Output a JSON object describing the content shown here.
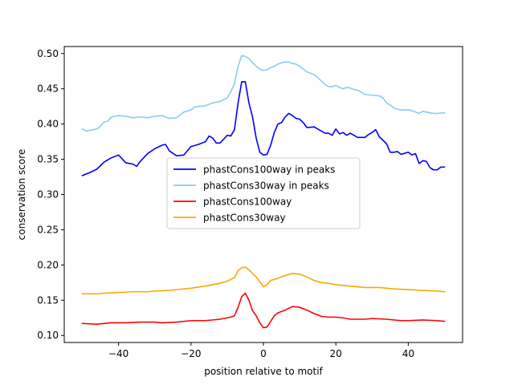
{
  "chart_data": {
    "type": "line",
    "title": "",
    "xlabel": "position relative to motif",
    "ylabel": "conservation score",
    "xlim": [
      -55,
      55
    ],
    "ylim": [
      0.09,
      0.51
    ],
    "xticks": [
      -40,
      -20,
      0,
      20,
      40
    ],
    "xtick_labels": [
      "−40",
      "−20",
      "0",
      "20",
      "40"
    ],
    "yticks": [
      0.1,
      0.15,
      0.2,
      0.25,
      0.3,
      0.35,
      0.4,
      0.45,
      0.5
    ],
    "ytick_labels": [
      "0.10",
      "0.15",
      "0.20",
      "0.25",
      "0.30",
      "0.35",
      "0.40",
      "0.45",
      "0.50"
    ],
    "grid": false,
    "legend_position": "center",
    "series": [
      {
        "name": "phastCons100way in peaks",
        "color": "#0000ff",
        "points": [
          [
            -50,
            0.327
          ],
          [
            -48,
            0.331
          ],
          [
            -46,
            0.336
          ],
          [
            -44,
            0.346
          ],
          [
            -42,
            0.352
          ],
          [
            -40,
            0.356
          ],
          [
            -38,
            0.345
          ],
          [
            -36,
            0.343
          ],
          [
            -35,
            0.34
          ],
          [
            -34,
            0.347
          ],
          [
            -32,
            0.358
          ],
          [
            -30,
            0.365
          ],
          [
            -28,
            0.37
          ],
          [
            -27,
            0.371
          ],
          [
            -26,
            0.362
          ],
          [
            -24,
            0.355
          ],
          [
            -22,
            0.356
          ],
          [
            -20,
            0.368
          ],
          [
            -18,
            0.371
          ],
          [
            -16,
            0.375
          ],
          [
            -15,
            0.383
          ],
          [
            -14,
            0.38
          ],
          [
            -13,
            0.373
          ],
          [
            -12,
            0.373
          ],
          [
            -10,
            0.384
          ],
          [
            -9,
            0.383
          ],
          [
            -8,
            0.392
          ],
          [
            -7,
            0.43
          ],
          [
            -6,
            0.46
          ],
          [
            -5,
            0.46
          ],
          [
            -4,
            0.43
          ],
          [
            -3,
            0.41
          ],
          [
            -2,
            0.38
          ],
          [
            -1,
            0.36
          ],
          [
            0,
            0.356
          ],
          [
            1,
            0.357
          ],
          [
            2,
            0.37
          ],
          [
            3,
            0.388
          ],
          [
            4,
            0.4
          ],
          [
            5,
            0.402
          ],
          [
            6,
            0.41
          ],
          [
            7,
            0.415
          ],
          [
            8,
            0.412
          ],
          [
            9,
            0.408
          ],
          [
            10,
            0.407
          ],
          [
            11,
            0.402
          ],
          [
            12,
            0.395
          ],
          [
            14,
            0.396
          ],
          [
            16,
            0.39
          ],
          [
            17,
            0.387
          ],
          [
            18,
            0.387
          ],
          [
            19,
            0.384
          ],
          [
            20,
            0.393
          ],
          [
            21,
            0.386
          ],
          [
            22,
            0.388
          ],
          [
            23,
            0.384
          ],
          [
            24,
            0.387
          ],
          [
            26,
            0.381
          ],
          [
            28,
            0.381
          ],
          [
            29,
            0.385
          ],
          [
            30,
            0.388
          ],
          [
            31,
            0.392
          ],
          [
            32,
            0.382
          ],
          [
            34,
            0.372
          ],
          [
            35,
            0.36
          ],
          [
            36,
            0.36
          ],
          [
            37,
            0.361
          ],
          [
            38,
            0.357
          ],
          [
            40,
            0.36
          ],
          [
            41,
            0.356
          ],
          [
            42,
            0.358
          ],
          [
            43,
            0.344
          ],
          [
            44,
            0.348
          ],
          [
            45,
            0.347
          ],
          [
            46,
            0.338
          ],
          [
            47,
            0.335
          ],
          [
            48,
            0.335
          ],
          [
            49,
            0.339
          ],
          [
            50,
            0.339
          ]
        ]
      },
      {
        "name": "phastCons30way in peaks",
        "color": "#87ceeb",
        "points": [
          [
            -50,
            0.393
          ],
          [
            -49,
            0.39
          ],
          [
            -48,
            0.391
          ],
          [
            -46,
            0.393
          ],
          [
            -45,
            0.397
          ],
          [
            -44,
            0.403
          ],
          [
            -43,
            0.404
          ],
          [
            -42,
            0.41
          ],
          [
            -40,
            0.412
          ],
          [
            -38,
            0.411
          ],
          [
            -36,
            0.409
          ],
          [
            -34,
            0.41
          ],
          [
            -32,
            0.409
          ],
          [
            -30,
            0.411
          ],
          [
            -28,
            0.412
          ],
          [
            -27,
            0.41
          ],
          [
            -26,
            0.408
          ],
          [
            -24,
            0.409
          ],
          [
            -23,
            0.413
          ],
          [
            -22,
            0.417
          ],
          [
            -20,
            0.42
          ],
          [
            -19,
            0.424
          ],
          [
            -18,
            0.425
          ],
          [
            -16,
            0.426
          ],
          [
            -14,
            0.43
          ],
          [
            -12,
            0.432
          ],
          [
            -10,
            0.437
          ],
          [
            -9,
            0.446
          ],
          [
            -8,
            0.457
          ],
          [
            -7,
            0.482
          ],
          [
            -6,
            0.497
          ],
          [
            -5,
            0.496
          ],
          [
            -4,
            0.493
          ],
          [
            -3,
            0.487
          ],
          [
            -2,
            0.482
          ],
          [
            -1,
            0.478
          ],
          [
            0,
            0.476
          ],
          [
            1,
            0.477
          ],
          [
            2,
            0.48
          ],
          [
            3,
            0.482
          ],
          [
            4,
            0.485
          ],
          [
            5,
            0.487
          ],
          [
            6,
            0.488
          ],
          [
            7,
            0.488
          ],
          [
            8,
            0.486
          ],
          [
            9,
            0.485
          ],
          [
            10,
            0.482
          ],
          [
            11,
            0.478
          ],
          [
            12,
            0.474
          ],
          [
            13,
            0.472
          ],
          [
            14,
            0.47
          ],
          [
            15,
            0.466
          ],
          [
            16,
            0.461
          ],
          [
            17,
            0.456
          ],
          [
            18,
            0.453
          ],
          [
            19,
            0.453
          ],
          [
            20,
            0.455
          ],
          [
            21,
            0.452
          ],
          [
            22,
            0.45
          ],
          [
            23,
            0.452
          ],
          [
            24,
            0.451
          ],
          [
            25,
            0.449
          ],
          [
            26,
            0.448
          ],
          [
            27,
            0.445
          ],
          [
            28,
            0.442
          ],
          [
            30,
            0.441
          ],
          [
            32,
            0.44
          ],
          [
            33,
            0.437
          ],
          [
            34,
            0.43
          ],
          [
            35,
            0.427
          ],
          [
            36,
            0.423
          ],
          [
            37,
            0.421
          ],
          [
            38,
            0.42
          ],
          [
            40,
            0.42
          ],
          [
            41,
            0.419
          ],
          [
            42,
            0.417
          ],
          [
            43,
            0.415
          ],
          [
            44,
            0.418
          ],
          [
            45,
            0.417
          ],
          [
            46,
            0.416
          ],
          [
            47,
            0.415
          ],
          [
            48,
            0.415
          ],
          [
            50,
            0.416
          ]
        ]
      },
      {
        "name": "phastCons100way",
        "color": "#ff0000",
        "points": [
          [
            -50,
            0.117
          ],
          [
            -46,
            0.116
          ],
          [
            -44,
            0.117
          ],
          [
            -42,
            0.118
          ],
          [
            -38,
            0.118
          ],
          [
            -34,
            0.119
          ],
          [
            -30,
            0.119
          ],
          [
            -28,
            0.118
          ],
          [
            -24,
            0.119
          ],
          [
            -20,
            0.121
          ],
          [
            -16,
            0.121
          ],
          [
            -12,
            0.123
          ],
          [
            -10,
            0.125
          ],
          [
            -9,
            0.126
          ],
          [
            -8,
            0.128
          ],
          [
            -7,
            0.14
          ],
          [
            -6,
            0.155
          ],
          [
            -5,
            0.16
          ],
          [
            -4,
            0.15
          ],
          [
            -3,
            0.135
          ],
          [
            -2,
            0.128
          ],
          [
            -1,
            0.118
          ],
          [
            0,
            0.111
          ],
          [
            1,
            0.112
          ],
          [
            2,
            0.12
          ],
          [
            3,
            0.128
          ],
          [
            4,
            0.132
          ],
          [
            6,
            0.136
          ],
          [
            8,
            0.141
          ],
          [
            10,
            0.14
          ],
          [
            12,
            0.136
          ],
          [
            14,
            0.131
          ],
          [
            16,
            0.127
          ],
          [
            18,
            0.126
          ],
          [
            20,
            0.126
          ],
          [
            22,
            0.125
          ],
          [
            24,
            0.123
          ],
          [
            26,
            0.123
          ],
          [
            28,
            0.123
          ],
          [
            30,
            0.124
          ],
          [
            34,
            0.123
          ],
          [
            38,
            0.121
          ],
          [
            40,
            0.121
          ],
          [
            44,
            0.122
          ],
          [
            48,
            0.121
          ],
          [
            50,
            0.12
          ]
        ]
      },
      {
        "name": "phastCons30way",
        "color": "#ffa500",
        "points": [
          [
            -50,
            0.159
          ],
          [
            -46,
            0.159
          ],
          [
            -44,
            0.16
          ],
          [
            -40,
            0.161
          ],
          [
            -36,
            0.162
          ],
          [
            -32,
            0.162
          ],
          [
            -30,
            0.163
          ],
          [
            -26,
            0.164
          ],
          [
            -24,
            0.165
          ],
          [
            -20,
            0.167
          ],
          [
            -16,
            0.17
          ],
          [
            -12,
            0.174
          ],
          [
            -10,
            0.177
          ],
          [
            -8,
            0.182
          ],
          [
            -7,
            0.192
          ],
          [
            -6,
            0.196
          ],
          [
            -5,
            0.197
          ],
          [
            -4,
            0.193
          ],
          [
            -3,
            0.188
          ],
          [
            -2,
            0.183
          ],
          [
            -1,
            0.176
          ],
          [
            0,
            0.169
          ],
          [
            1,
            0.172
          ],
          [
            2,
            0.178
          ],
          [
            4,
            0.181
          ],
          [
            6,
            0.185
          ],
          [
            8,
            0.188
          ],
          [
            10,
            0.187
          ],
          [
            12,
            0.183
          ],
          [
            14,
            0.178
          ],
          [
            16,
            0.175
          ],
          [
            18,
            0.174
          ],
          [
            20,
            0.172
          ],
          [
            24,
            0.17
          ],
          [
            28,
            0.168
          ],
          [
            32,
            0.168
          ],
          [
            36,
            0.166
          ],
          [
            40,
            0.165
          ],
          [
            44,
            0.164
          ],
          [
            48,
            0.163
          ],
          [
            50,
            0.162
          ]
        ]
      }
    ]
  }
}
